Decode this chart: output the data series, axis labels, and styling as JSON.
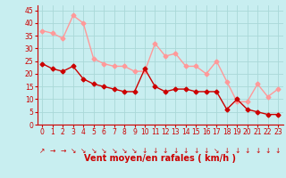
{
  "x": [
    0,
    1,
    2,
    3,
    4,
    5,
    6,
    7,
    8,
    9,
    10,
    11,
    12,
    13,
    14,
    15,
    16,
    17,
    18,
    19,
    20,
    21,
    22,
    23
  ],
  "wind_avg": [
    24,
    22,
    21,
    23,
    18,
    16,
    15,
    14,
    13,
    13,
    22,
    15,
    13,
    14,
    14,
    13,
    13,
    13,
    6,
    10,
    6,
    5,
    4,
    4
  ],
  "wind_gust": [
    37,
    36,
    34,
    43,
    40,
    26,
    24,
    23,
    23,
    21,
    21,
    32,
    27,
    28,
    23,
    23,
    20,
    25,
    17,
    9,
    9,
    16,
    11,
    14
  ],
  "wind_dirs": [
    "↗",
    "→",
    "→",
    "↘",
    "↘",
    "↘",
    "↘",
    "↘",
    "↘",
    "↘",
    "↓",
    "↓",
    "↓",
    "↓",
    "↓",
    "↓",
    "↓",
    "↘",
    "↓",
    "↓",
    "↓",
    "↓",
    "↓",
    "↓"
  ],
  "bg_color": "#c8eef0",
  "grid_color": "#aad8d8",
  "avg_color": "#cc0000",
  "gust_color": "#ff9999",
  "xlabel": "Vent moyen/en rafales ( km/h )",
  "yticks": [
    0,
    5,
    10,
    15,
    20,
    25,
    30,
    35,
    40,
    45
  ],
  "ylim": [
    0,
    47
  ],
  "xlim": [
    -0.5,
    23.5
  ],
  "marker_size": 2.5,
  "linewidth": 1.0,
  "dir_fontsize": 5.5,
  "tick_fontsize": 5.5,
  "xlabel_fontsize": 7.0
}
